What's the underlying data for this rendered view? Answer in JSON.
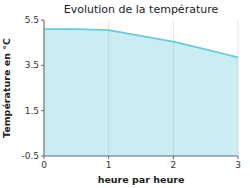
{
  "chart_data": {
    "type": "area",
    "title": "Evolution de la température",
    "xlabel": "heure par heure",
    "ylabel": "Température en °C",
    "x": [
      0,
      0.5,
      1.0,
      1.5,
      2.0,
      2.5,
      3.0
    ],
    "values": [
      5.1,
      5.1,
      5.05,
      4.8,
      4.55,
      4.2,
      3.85
    ],
    "xlim": [
      0,
      3
    ],
    "ylim": [
      -0.5,
      5.5
    ],
    "xticks": [
      0,
      1,
      2,
      3
    ],
    "yticks": [
      -0.5,
      1.5,
      3.5,
      5.5
    ],
    "color": "#66ccdd",
    "grid": "x"
  }
}
